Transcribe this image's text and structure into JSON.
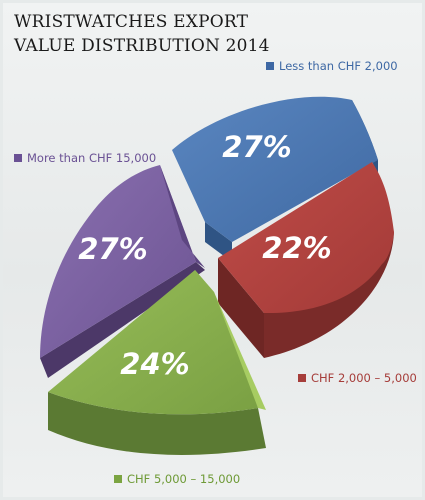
{
  "chart_data": {
    "type": "pie",
    "title_line1": "WRISTWATCHES EXPORT",
    "title_line2": "VALUE DISTRIBUTION 2014",
    "slices": [
      {
        "label": "Less than CHF 2,000",
        "value": 27,
        "value_label": "27%",
        "color": "#4a76b0"
      },
      {
        "label": "CHF 2,000 – 5,000",
        "value": 22,
        "value_label": "22%",
        "color": "#b0423f"
      },
      {
        "label": "CHF 5,000 – 15,000",
        "value": 24,
        "value_label": "24%",
        "color": "#86ab4c"
      },
      {
        "label": "More than CHF 15,000",
        "value": 27,
        "value_label": "27%",
        "color": "#7a5fa0"
      }
    ],
    "legend_placement": "labels near slices",
    "style": "3d-exploded-pie"
  }
}
